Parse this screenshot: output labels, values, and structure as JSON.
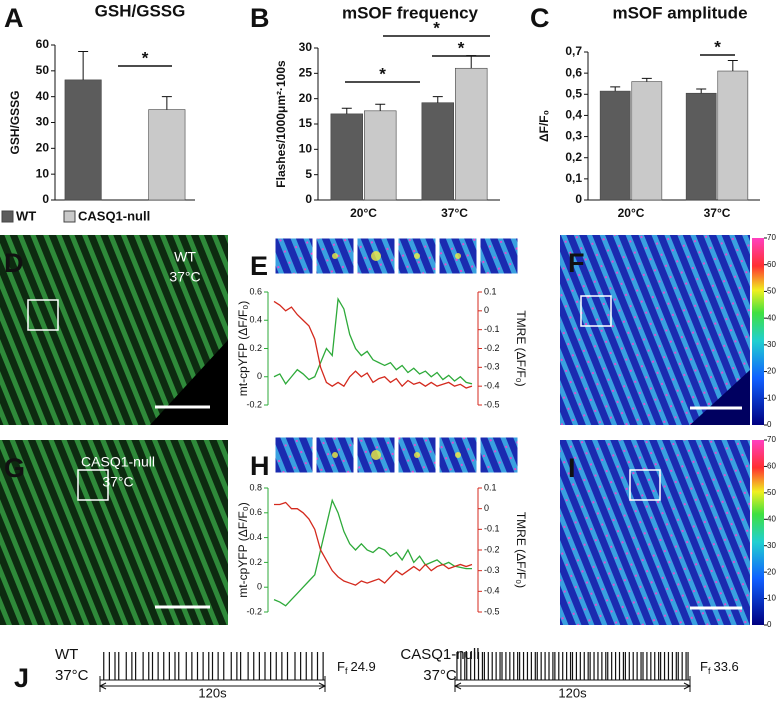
{
  "panels": [
    "A",
    "B",
    "C",
    "D",
    "E",
    "F",
    "G",
    "H",
    "I",
    "J"
  ],
  "chart_data": [
    {
      "type": "bar",
      "title": "GSH/GSSG",
      "ylabel": "GSH/GSSG",
      "ylim": [
        0,
        60
      ],
      "yticks": [
        0,
        10,
        20,
        30,
        40,
        50,
        60
      ],
      "series": [
        {
          "name": "WT",
          "color": "#5c5c5c",
          "values": [
            46.5
          ],
          "error": [
            11
          ]
        },
        {
          "name": "CASQ1-null",
          "color": "#c9c9c9",
          "values": [
            35
          ],
          "error": [
            5
          ]
        }
      ],
      "annotations": [
        {
          "text": "*"
        }
      ]
    },
    {
      "type": "bar",
      "title": "mSOF frequency",
      "ylabel": "Flashes/1000μm²·100s",
      "categories": [
        "20°C",
        "37°C"
      ],
      "ylim": [
        0,
        30
      ],
      "yticks": [
        0,
        5,
        10,
        15,
        20,
        25,
        30
      ],
      "series": [
        {
          "color": "#5c5c5c",
          "values": [
            17,
            19.2
          ],
          "error": [
            1.1,
            1.2
          ]
        },
        {
          "color": "#c9c9c9",
          "values": [
            17.6,
            26
          ],
          "error": [
            1.3,
            2.5
          ]
        }
      ],
      "annotations": [
        {
          "text": "*"
        },
        {
          "text": "*"
        },
        {
          "text": "*"
        }
      ]
    },
    {
      "type": "bar",
      "title": "mSOF amplitude",
      "ylabel": "ΔF/F₀",
      "categories": [
        "20°C",
        "37°C"
      ],
      "ylim": [
        0,
        0.7
      ],
      "yticks": [
        0,
        {
          "value": 0.1,
          "label": "0,1"
        },
        {
          "value": 0.2,
          "label": "0,2"
        },
        {
          "value": 0.3,
          "label": "0,3"
        },
        {
          "value": 0.4,
          "label": "0,4"
        },
        {
          "value": 0.5,
          "label": "0,5"
        },
        {
          "value": 0.6,
          "label": "0,6"
        },
        {
          "value": 0.7,
          "label": "0,7"
        }
      ],
      "series": [
        {
          "color": "#5c5c5c",
          "values": [
            0.515,
            0.505
          ],
          "error": [
            0.02,
            0.02
          ]
        },
        {
          "color": "#c9c9c9",
          "values": [
            0.56,
            0.61
          ],
          "error": [
            0.015,
            0.05
          ]
        }
      ],
      "annotations": [
        {
          "text": "*"
        }
      ]
    },
    {
      "type": "line",
      "ylabel": "mt-cpYFP (ΔF/F₀)",
      "y2label": "TMRE (ΔF/F₀)",
      "ylim": [
        -0.2,
        0.6
      ],
      "yticks": [
        -0.2,
        0,
        0.2,
        0.4,
        0.6
      ],
      "y2lim": [
        -0.5,
        0.1
      ],
      "y2ticks": [
        -0.5,
        -0.4,
        -0.3,
        -0.2,
        -0.1,
        0,
        0.1
      ],
      "series": [
        {
          "color": "#2eaa3a",
          "values": [
            0.0,
            0.02,
            -0.05,
            0.0,
            0.05,
            0.02,
            -0.02,
            0.0,
            0.1,
            0.2,
            0.15,
            0.55,
            0.48,
            0.3,
            0.2,
            0.15,
            0.18,
            0.12,
            0.1,
            0.08,
            0.1,
            0.05,
            0.08,
            0.03,
            0.06,
            0.02,
            0.04,
            0.0,
            0.03,
            -0.02,
            0.01,
            -0.03,
            0.0,
            -0.04,
            -0.05
          ]
        },
        {
          "color": "#d42a1e",
          "axis": "y2",
          "values": [
            0.05,
            0.03,
            0.0,
            0.02,
            -0.02,
            -0.05,
            -0.08,
            -0.15,
            -0.3,
            -0.38,
            -0.4,
            -0.38,
            -0.4,
            -0.35,
            -0.32,
            -0.35,
            -0.33,
            -0.38,
            -0.36,
            -0.35,
            -0.38,
            -0.36,
            -0.4,
            -0.37,
            -0.39,
            -0.38,
            -0.4,
            -0.38,
            -0.4,
            -0.39,
            -0.38,
            -0.4,
            -0.39,
            -0.41,
            -0.4
          ]
        }
      ]
    },
    {
      "type": "line",
      "ylabel": "mt-cpYFP (ΔF/F₀)",
      "y2label": "TMRE (ΔF/F₀)",
      "ylim": [
        -0.2,
        0.8
      ],
      "yticks": [
        -0.2,
        0,
        0.2,
        0.4,
        0.6,
        0.8
      ],
      "y2lim": [
        -0.5,
        0.1
      ],
      "y2ticks": [
        -0.5,
        -0.4,
        -0.3,
        -0.2,
        -0.1,
        0,
        0.1
      ],
      "series": [
        {
          "color": "#2eaa3a",
          "values": [
            -0.1,
            -0.12,
            -0.15,
            -0.1,
            -0.05,
            0.0,
            0.05,
            0.1,
            0.3,
            0.5,
            0.7,
            0.6,
            0.45,
            0.35,
            0.3,
            0.35,
            0.3,
            0.28,
            0.32,
            0.3,
            0.25,
            0.28,
            0.22,
            0.3,
            0.2,
            0.25,
            0.18,
            0.2,
            0.22,
            0.18,
            0.2,
            0.17,
            0.16,
            0.15,
            0.15
          ]
        },
        {
          "color": "#d42a1e",
          "axis": "y2",
          "values": [
            0.02,
            0.02,
            0.03,
            0.0,
            0.0,
            -0.02,
            -0.05,
            -0.1,
            -0.2,
            -0.25,
            -0.3,
            -0.33,
            -0.35,
            -0.36,
            -0.37,
            -0.35,
            -0.36,
            -0.35,
            -0.34,
            -0.36,
            -0.33,
            -0.3,
            -0.32,
            -0.3,
            -0.28,
            -0.3,
            -0.27,
            -0.3,
            -0.28,
            -0.27,
            -0.29,
            -0.28,
            -0.27,
            -0.28,
            -0.27
          ]
        }
      ]
    }
  ],
  "images": {
    "D": [
      "WT",
      "37°C"
    ],
    "G": [
      "CASQ1-null",
      "37°C"
    ]
  },
  "colorbars": [
    {
      "ticks": [
        0,
        10,
        20,
        30,
        40,
        50,
        60,
        70
      ]
    },
    {
      "ticks": [
        0,
        10,
        20,
        30,
        40,
        50,
        60,
        70
      ]
    }
  ],
  "trains": [
    {
      "label": [
        "WT",
        "37°C"
      ],
      "rate": {
        "symbol": "F",
        "subscript": "f",
        "value": "24.9"
      },
      "span": "120s",
      "xlim": [
        0,
        120
      ],
      "events": [
        2,
        5,
        8,
        10,
        14,
        17,
        19,
        23,
        26,
        28,
        31,
        34,
        37,
        40,
        42,
        46,
        49,
        52,
        55,
        58,
        60,
        63,
        66,
        70,
        73,
        75,
        79,
        82,
        85,
        88,
        91,
        94,
        97,
        100,
        104,
        107,
        110,
        113,
        116,
        119
      ]
    },
    {
      "label": [
        "CASQ1-null",
        "37°C"
      ],
      "rate": {
        "symbol": "F",
        "subscript": "f",
        "value": "33.6"
      },
      "span": "120s",
      "xlim": [
        0,
        120
      ],
      "events": [
        1,
        3,
        5,
        6,
        8,
        10,
        12,
        14,
        15,
        17,
        19,
        21,
        23,
        24,
        26,
        28,
        30,
        32,
        33,
        35,
        37,
        39,
        41,
        42,
        44,
        46,
        48,
        50,
        51,
        53,
        55,
        57,
        59,
        60,
        62,
        64,
        66,
        68,
        69,
        71,
        73,
        75,
        77,
        78,
        80,
        82,
        84,
        86,
        87,
        89,
        91,
        93,
        95,
        96,
        98,
        100,
        102,
        104,
        105,
        107,
        109,
        111,
        113,
        114,
        116,
        118,
        119
      ]
    }
  ]
}
